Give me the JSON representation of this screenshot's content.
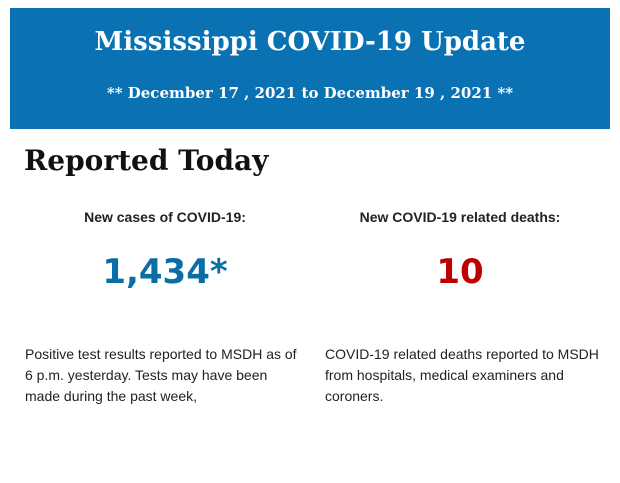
{
  "banner": {
    "title": "Mississippi COVID-19 Update",
    "date_range": "** December 17 , 2021 to December 19 , 2021 **",
    "background_color": "#0a72b2"
  },
  "section": {
    "heading": "Reported Today"
  },
  "stats": {
    "cases": {
      "label": "New cases of COVID-19:",
      "value": "1,434*",
      "color": "#0a6ea6",
      "description": "Positive test results reported to MSDH as of 6 p.m. yesterday. Tests may have been made during the past week,"
    },
    "deaths": {
      "label": "New COVID-19 related deaths:",
      "value": "10",
      "color": "#c00000",
      "description": "COVID-19 related deaths reported to MSDH from hospitals, medical examiners and coroners."
    }
  }
}
